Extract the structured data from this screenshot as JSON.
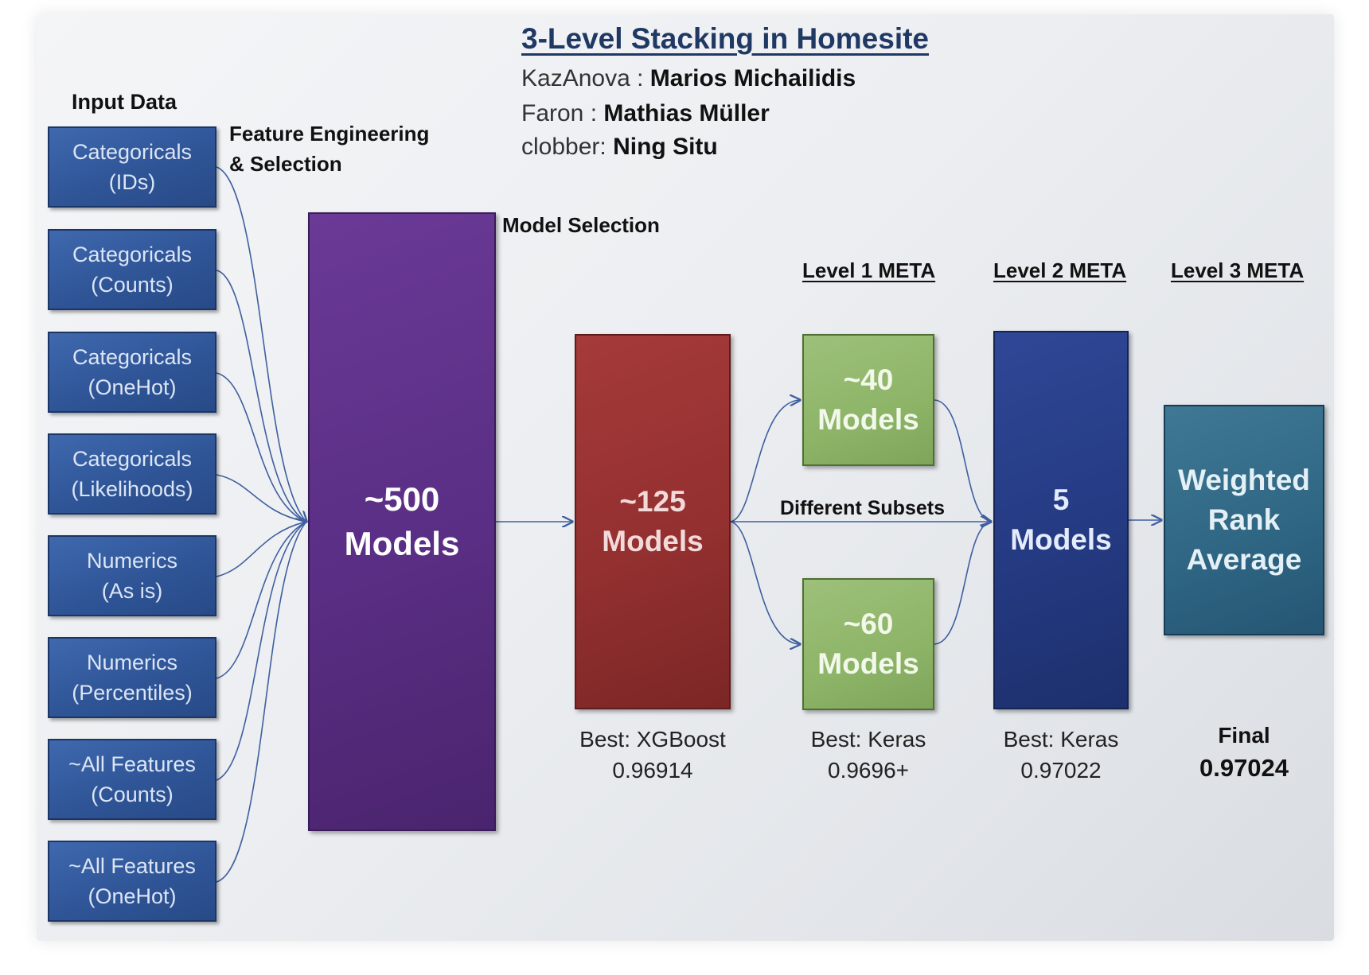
{
  "title": "3-Level Stacking in Homesite",
  "authors": [
    {
      "handle": "KazAnova :",
      "name": "Marios Michailidis"
    },
    {
      "handle": "Faron :",
      "name": "Mathias Müller"
    },
    {
      "handle": "clobber:",
      "name": "Ning Situ"
    }
  ],
  "labels": {
    "input_data": "Input Data",
    "feature_eng_1": "Feature Engineering",
    "feature_eng_2": "& Selection",
    "model_selection": "Model Selection",
    "different_subsets": "Different Subsets",
    "level1": "Level 1 META",
    "level2": "Level 2 META",
    "level3": "Level 3 META"
  },
  "inputs": [
    {
      "line1": "Categoricals",
      "line2": "(IDs)"
    },
    {
      "line1": "Categoricals",
      "line2": "(Counts)"
    },
    {
      "line1": "Categoricals",
      "line2": "(OneHot)"
    },
    {
      "line1": "Categoricals",
      "line2": "(Likelihoods)"
    },
    {
      "line1": "Numerics",
      "line2": "(As is)"
    },
    {
      "line1": "Numerics",
      "line2": "(Percentiles)"
    },
    {
      "line1": "~All Features",
      "line2": "(Counts)"
    },
    {
      "line1": "~All Features",
      "line2": "(OneHot)"
    }
  ],
  "boxes": {
    "m500": {
      "line1": "~500",
      "line2": "Models"
    },
    "m125": {
      "line1": "~125",
      "line2": "Models"
    },
    "m40": {
      "line1": "~40",
      "line2": "Models"
    },
    "m60": {
      "line1": "~60",
      "line2": "Models"
    },
    "m5": {
      "line1": "5",
      "line2": "Models"
    },
    "weighted": {
      "line1": "Weighted",
      "line2": "Rank",
      "line3": "Average"
    }
  },
  "scores": {
    "xgb": {
      "line1": "Best: XGBoost",
      "line2": "0.96914"
    },
    "keras1": {
      "line1": "Best: Keras",
      "line2": "0.9696+"
    },
    "keras2": {
      "line1": "Best: Keras",
      "line2": "0.97022"
    },
    "final": {
      "line1": "Final",
      "line2": "0.97024"
    }
  },
  "colors": {
    "title": "#1f3864",
    "input_box": "#2f5597",
    "box500": "#5a2e84",
    "box125": "#943030",
    "green": "#8db467",
    "box5": "#243a82",
    "weighted": "#2f6784",
    "arrow": "#3f5fa0"
  }
}
